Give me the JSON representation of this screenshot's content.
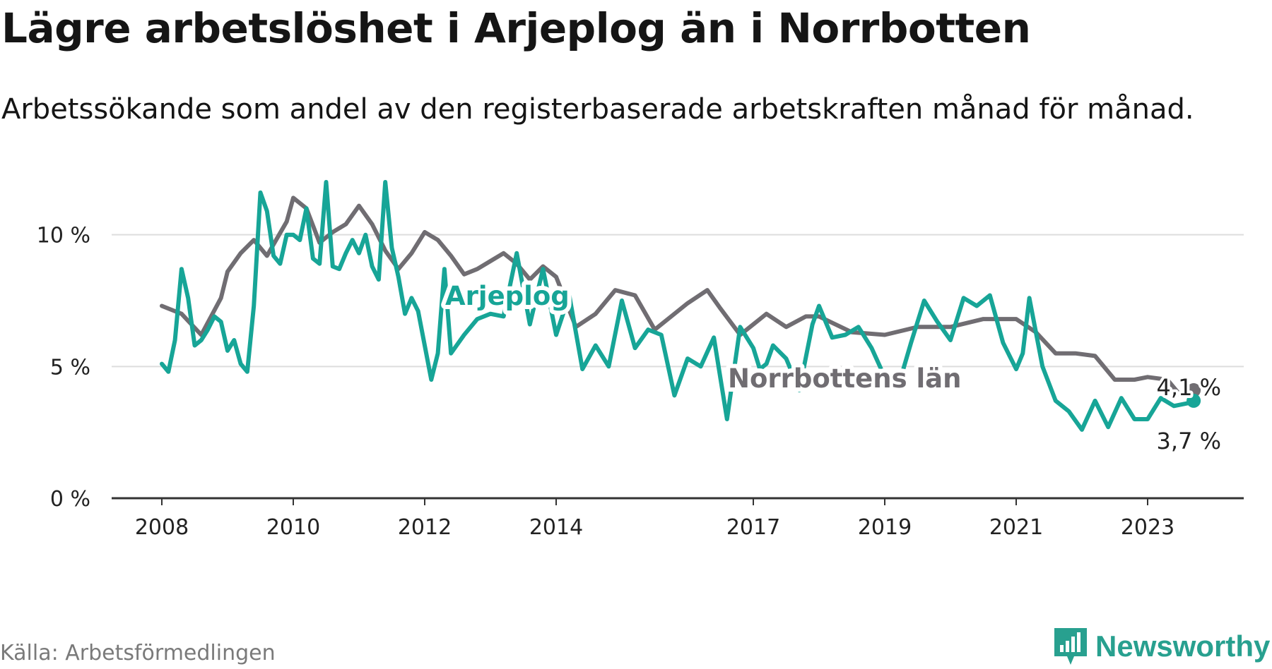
{
  "title": "Lägre arbetslöshet i Arjeplog än i Norrbotten",
  "subtitle": "Arbetssökande som andel av den registerbaserade arbetskraften månad för månad.",
  "source": "Källa: Arbetsförmedlingen",
  "brand": "Newsworthy",
  "colors": {
    "arjeplog": "#17a597",
    "norrbotten": "#706d72",
    "grid": "#dddddd",
    "axis": "#333333",
    "brand": "#28a08f"
  },
  "chart_data": {
    "type": "line",
    "title": "Lägre arbetslöshet i Arjeplog än i Norrbotten",
    "xlabel": "",
    "ylabel": "",
    "ylim": [
      0,
      12
    ],
    "xlim": [
      2008.0,
      2024.6
    ],
    "grid": true,
    "y_ticks": [
      {
        "value": 0,
        "label": "0 %"
      },
      {
        "value": 5,
        "label": "5 %"
      },
      {
        "value": 10,
        "label": "10 %"
      }
    ],
    "x_ticks": [
      {
        "value": 2008,
        "label": "2008"
      },
      {
        "value": 2010,
        "label": "2010"
      },
      {
        "value": 2012,
        "label": "2012"
      },
      {
        "value": 2014,
        "label": "2014"
      },
      {
        "value": 2017,
        "label": "2017"
      },
      {
        "value": 2019,
        "label": "2019"
      },
      {
        "value": 2021,
        "label": "2021"
      },
      {
        "value": 2023,
        "label": "2023"
      }
    ],
    "series": [
      {
        "name": "Norrbottens län",
        "color": "#706d72",
        "label": "Norrbottens län",
        "end_label": "4,1 %",
        "x": [
          2008.0,
          2008.3,
          2008.6,
          2008.9,
          2009.0,
          2009.2,
          2009.4,
          2009.6,
          2009.9,
          2010.0,
          2010.2,
          2010.4,
          2010.6,
          2010.8,
          2011.0,
          2011.2,
          2011.4,
          2011.6,
          2011.8,
          2012.0,
          2012.2,
          2012.4,
          2012.6,
          2012.8,
          2013.0,
          2013.2,
          2013.4,
          2013.6,
          2013.8,
          2014.0,
          2014.3,
          2014.6,
          2014.9,
          2015.2,
          2015.5,
          2015.8,
          2016.0,
          2016.3,
          2016.5,
          2016.8,
          2017.0,
          2017.2,
          2017.5,
          2017.8,
          2018.0,
          2018.5,
          2019.0,
          2019.5,
          2020.0,
          2020.5,
          2021.0,
          2021.3,
          2021.6,
          2021.9,
          2022.2,
          2022.5,
          2022.8,
          2023.0,
          2023.3,
          2023.5,
          2023.7
        ],
        "values": [
          7.3,
          7.0,
          6.2,
          7.6,
          8.6,
          9.3,
          9.8,
          9.2,
          10.5,
          11.4,
          11.0,
          9.7,
          10.1,
          10.4,
          11.1,
          10.4,
          9.4,
          8.7,
          9.3,
          10.1,
          9.8,
          9.2,
          8.5,
          8.7,
          9.0,
          9.3,
          8.9,
          8.3,
          8.8,
          8.4,
          6.5,
          7.0,
          7.9,
          7.7,
          6.4,
          7.0,
          7.4,
          7.9,
          7.2,
          6.2,
          6.6,
          7.0,
          6.5,
          6.9,
          6.9,
          6.3,
          6.2,
          6.5,
          6.5,
          6.8,
          6.8,
          6.3,
          5.5,
          5.5,
          5.4,
          4.5,
          4.5,
          4.6,
          4.5,
          3.9,
          4.1
        ]
      },
      {
        "name": "Arjeplog",
        "color": "#17a597",
        "label": "Arjeplog",
        "end_label": "3,7 %",
        "x": [
          2008.0,
          2008.1,
          2008.2,
          2008.3,
          2008.4,
          2008.5,
          2008.6,
          2008.7,
          2008.8,
          2008.9,
          2009.0,
          2009.1,
          2009.2,
          2009.3,
          2009.4,
          2009.5,
          2009.6,
          2009.7,
          2009.8,
          2009.9,
          2010.0,
          2010.1,
          2010.2,
          2010.3,
          2010.4,
          2010.5,
          2010.6,
          2010.7,
          2010.8,
          2010.9,
          2011.0,
          2011.1,
          2011.2,
          2011.3,
          2011.4,
          2011.5,
          2011.6,
          2011.7,
          2011.8,
          2011.9,
          2012.0,
          2012.1,
          2012.2,
          2012.3,
          2012.4,
          2012.6,
          2012.8,
          2013.0,
          2013.2,
          2013.4,
          2013.6,
          2013.8,
          2014.0,
          2014.2,
          2014.4,
          2014.6,
          2014.8,
          2015.0,
          2015.2,
          2015.4,
          2015.6,
          2015.8,
          2016.0,
          2016.2,
          2016.4,
          2016.6,
          2016.8,
          2017.0,
          2017.1,
          2017.2,
          2017.3,
          2017.5,
          2017.7,
          2017.9,
          2018.0,
          2018.2,
          2018.4,
          2018.6,
          2018.8,
          2019.0,
          2019.2,
          2019.4,
          2019.6,
          2019.8,
          2020.0,
          2020.2,
          2020.4,
          2020.6,
          2020.8,
          2021.0,
          2021.1,
          2021.2,
          2021.4,
          2021.6,
          2021.8,
          2022.0,
          2022.2,
          2022.4,
          2022.6,
          2022.8,
          2023.0,
          2023.2,
          2023.4,
          2023.6,
          2023.7
        ],
        "values": [
          5.1,
          4.8,
          6.0,
          8.7,
          7.6,
          5.8,
          6.0,
          6.4,
          6.9,
          6.7,
          5.6,
          6.0,
          5.1,
          4.8,
          7.3,
          11.6,
          10.9,
          9.2,
          8.9,
          10.0,
          10.0,
          9.8,
          11.0,
          9.1,
          8.9,
          12.0,
          8.8,
          8.7,
          9.3,
          9.8,
          9.3,
          10.0,
          8.8,
          8.3,
          12.0,
          9.5,
          8.4,
          7.0,
          7.6,
          7.1,
          5.8,
          4.5,
          5.5,
          8.7,
          5.5,
          6.2,
          6.8,
          7.0,
          6.9,
          9.3,
          6.6,
          8.7,
          6.2,
          7.7,
          4.9,
          5.8,
          5.0,
          7.5,
          5.7,
          6.4,
          6.2,
          3.9,
          5.3,
          5.0,
          6.1,
          3.0,
          6.5,
          5.7,
          4.9,
          5.1,
          5.8,
          5.3,
          4.1,
          6.6,
          7.3,
          6.1,
          6.2,
          6.5,
          5.7,
          4.6,
          4.2,
          5.9,
          7.5,
          6.7,
          6.0,
          7.6,
          7.3,
          7.7,
          5.9,
          4.9,
          5.5,
          7.6,
          5.0,
          3.7,
          3.3,
          2.6,
          3.7,
          2.7,
          3.8,
          3.0,
          3.0,
          3.8,
          3.5,
          3.6,
          3.7
        ]
      }
    ]
  }
}
